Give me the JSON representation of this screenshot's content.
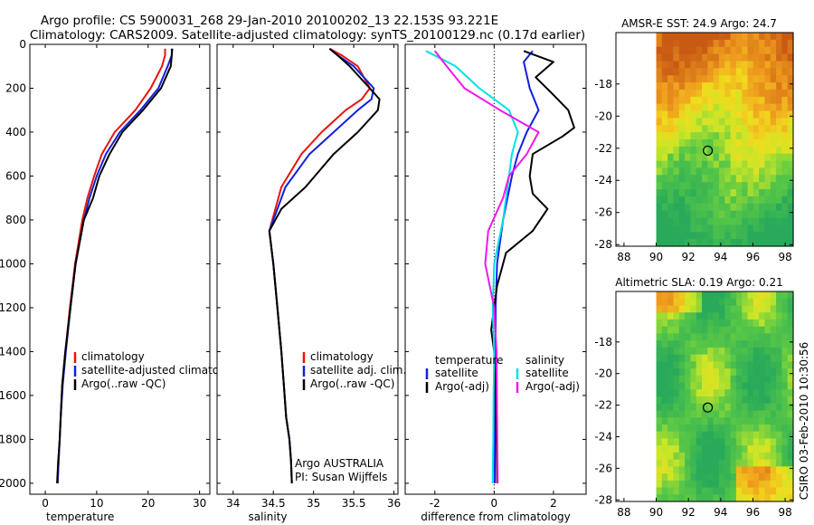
{
  "figure": {
    "title_line1": "Argo profile: CS 5900031_268 29-Jan-2010 20100202_13 22.153S 93.221E",
    "title_line2": "Climatology: CARS2009. Satellite-adjusted climatology: synTS_20100129.nc (0.17d earlier)",
    "timestamp": "CSIRO 03-Feb-2010 10:30:56"
  },
  "colors": {
    "climatology": "#e8140c",
    "satellite_adjusted": "#1020e0",
    "argo": "#000000",
    "satellite_diff_salinity": "#00e0e8",
    "argo_diff_salinity": "#ee18ee"
  },
  "chart_data": [
    {
      "type": "line",
      "xlabel": "temperature",
      "ylabel": "",
      "xlim": [
        -3,
        32
      ],
      "ylim": [
        2050,
        0
      ],
      "xticks": [
        0,
        10,
        20,
        30
      ],
      "yticks": [
        0,
        200,
        400,
        600,
        800,
        1000,
        1200,
        1400,
        1600,
        1800,
        2000
      ],
      "legend_placement": "middle-right",
      "legend": [
        "climatology",
        "satellite-adjusted climatology",
        "Argo(..raw -QC)"
      ],
      "series": [
        {
          "name": "climatology",
          "color": "#e8140c",
          "x": [
            23.3,
            23.3,
            22.7,
            20.5,
            17.5,
            13.5,
            11.0,
            9.5,
            8.2,
            7.2,
            5.8,
            4.8,
            3.9,
            3.3,
            3.0,
            2.8,
            2.6,
            2.4
          ],
          "y": [
            20,
            50,
            100,
            200,
            300,
            400,
            500,
            600,
            700,
            800,
            1000,
            1200,
            1400,
            1550,
            1700,
            1800,
            1900,
            2000
          ]
        },
        {
          "name": "satellite-adjusted climatology",
          "color": "#1020e0",
          "x": [
            24.6,
            24.6,
            23.8,
            22.0,
            18.5,
            14.5,
            11.8,
            10.0,
            8.6,
            7.5,
            5.9,
            4.9,
            4.0,
            3.4,
            3.0,
            2.8,
            2.6,
            2.4
          ],
          "y": [
            20,
            50,
            100,
            200,
            300,
            400,
            500,
            600,
            700,
            800,
            1000,
            1200,
            1400,
            1550,
            1700,
            1800,
            1900,
            2000
          ]
        },
        {
          "name": "Argo(..raw -QC)",
          "color": "#000000",
          "x": [
            24.7,
            24.6,
            24.4,
            22.5,
            19.0,
            15.0,
            12.5,
            10.5,
            9.3,
            7.5,
            5.9,
            4.9,
            3.9,
            3.3,
            3.0,
            2.8,
            2.5,
            2.3
          ],
          "y": [
            20,
            50,
            100,
            200,
            300,
            400,
            500,
            600,
            700,
            800,
            1000,
            1200,
            1400,
            1550,
            1700,
            1800,
            1900,
            2000
          ]
        }
      ]
    },
    {
      "type": "line",
      "xlabel": "salinity",
      "ylabel": "",
      "xlim": [
        33.8,
        36.05
      ],
      "ylim": [
        2050,
        0
      ],
      "xticks": [
        34,
        34.5,
        35,
        35.5,
        36
      ],
      "yticks": [
        0,
        200,
        400,
        600,
        800,
        1000,
        1200,
        1400,
        1600,
        1800,
        2000
      ],
      "legend_placement": "middle-right",
      "legend": [
        "climatology",
        "satellite adj. clim.",
        "Argo(..raw -QC)"
      ],
      "annotation": [
        "Argo AUSTRALIA",
        "PI: Susan Wijffels"
      ],
      "series": [
        {
          "name": "climatology",
          "color": "#e8140c",
          "x": [
            35.2,
            35.35,
            35.55,
            35.7,
            35.6,
            35.4,
            35.1,
            34.85,
            34.6,
            34.45,
            34.5,
            34.55,
            34.6,
            34.63,
            34.66,
            34.7,
            34.72,
            34.73
          ],
          "y": [
            20,
            50,
            100,
            200,
            250,
            300,
            400,
            500,
            650,
            850,
            1000,
            1200,
            1400,
            1550,
            1700,
            1800,
            1900,
            2000
          ]
        },
        {
          "name": "satellite adj. clim.",
          "color": "#1020e0",
          "x": [
            35.2,
            35.3,
            35.5,
            35.75,
            35.72,
            35.55,
            35.25,
            34.95,
            34.65,
            34.45,
            34.5,
            34.55,
            34.6,
            34.63,
            34.66,
            34.7,
            34.72,
            34.73
          ],
          "y": [
            20,
            50,
            100,
            200,
            250,
            300,
            400,
            500,
            650,
            850,
            1000,
            1200,
            1400,
            1550,
            1700,
            1800,
            1900,
            2000
          ]
        },
        {
          "name": "Argo(..raw -QC)",
          "color": "#000000",
          "x": [
            35.2,
            35.3,
            35.45,
            35.7,
            35.82,
            35.8,
            35.55,
            35.25,
            34.9,
            34.6,
            34.45,
            34.5,
            34.55,
            34.6,
            34.63,
            34.66,
            34.7,
            34.72,
            34.73
          ],
          "y": [
            20,
            50,
            100,
            200,
            250,
            300,
            400,
            500,
            650,
            750,
            850,
            1000,
            1200,
            1400,
            1550,
            1700,
            1800,
            1900,
            2000
          ]
        }
      ]
    },
    {
      "type": "line",
      "xlabel": "difference from climatology",
      "ylabel": "",
      "xlim": [
        -3,
        3.1
      ],
      "ylim": [
        2050,
        0
      ],
      "xticks": [
        -2,
        0,
        2
      ],
      "yticks": [
        0,
        200,
        400,
        600,
        800,
        1000,
        1200,
        1400,
        1600,
        1800,
        2000
      ],
      "reference_line_x": 0,
      "legend_placement": "middle",
      "legend_headers": [
        "temperature",
        "salinity"
      ],
      "legend": [
        "satellite",
        "Argo(-adj)",
        "satellite",
        "Argo(-adj)"
      ],
      "series": [
        {
          "name": "satellite",
          "quantity": "temperature",
          "color": "#1020e0",
          "x": [
            1.3,
            1.0,
            1.2,
            1.5,
            1.1,
            0.8,
            0.6,
            0.3,
            0.1,
            0.05,
            0.05,
            0.03,
            0.02,
            0.02
          ],
          "y": [
            30,
            80,
            200,
            300,
            400,
            500,
            600,
            800,
            1000,
            1200,
            1400,
            1600,
            1800,
            2000
          ]
        },
        {
          "name": "Argo(-adj)",
          "quantity": "temperature",
          "color": "#000000",
          "x": [
            1.0,
            2.0,
            1.4,
            2.0,
            2.5,
            2.7,
            2.3,
            1.3,
            1.2,
            1.3,
            1.8,
            1.3,
            0.4,
            0.1,
            -0.1,
            0.0,
            0.05,
            0.08,
            0.1
          ],
          "y": [
            30,
            80,
            150,
            230,
            300,
            380,
            420,
            500,
            600,
            680,
            750,
            850,
            950,
            1100,
            1300,
            1400,
            1600,
            1800,
            2000
          ]
        },
        {
          "name": "satellite",
          "quantity": "salinity",
          "color": "#00e0e8",
          "x": [
            -2.3,
            -1.3,
            -0.5,
            0.5,
            0.8,
            0.6,
            0.5,
            0.3,
            0.0,
            -0.05,
            0.0,
            -0.02,
            -0.03,
            -0.05
          ],
          "y": [
            30,
            100,
            200,
            300,
            400,
            500,
            600,
            800,
            1000,
            1200,
            1400,
            1600,
            1800,
            2000
          ]
        },
        {
          "name": "Argo(-adj)",
          "quantity": "salinity",
          "color": "#ee18ee",
          "x": [
            -2.0,
            -1.6,
            -1.0,
            0.2,
            1.5,
            1.1,
            0.5,
            0.3,
            -0.2,
            -0.3,
            0.0,
            0.08,
            0.1,
            0.12
          ],
          "y": [
            30,
            100,
            200,
            300,
            400,
            500,
            600,
            700,
            850,
            1000,
            1200,
            1400,
            1700,
            2000
          ]
        }
      ]
    },
    {
      "type": "heatmap",
      "title": "AMSR-E SST: 24.9 Argo: 24.7",
      "xlim": [
        87.5,
        98.5
      ],
      "ylim": [
        -28.1,
        -14.8
      ],
      "xticks": [
        88,
        90,
        92,
        94,
        96,
        98
      ],
      "yticks": [
        -18,
        -20,
        -22,
        -24,
        -26,
        -28
      ],
      "data_extent_x": [
        90,
        98.5
      ],
      "marker": {
        "x": 93.2,
        "y": -22.15
      },
      "colormap": "jet-like: warm orange at north, yellow band, green to south"
    },
    {
      "type": "heatmap",
      "title": "Altimetric SLA: 0.19 Argo: 0.21",
      "xlim": [
        87.5,
        98.5
      ],
      "ylim": [
        -28.1,
        -14.8
      ],
      "xticks": [
        88,
        90,
        92,
        94,
        96,
        98
      ],
      "yticks": [
        -18,
        -20,
        -22,
        -24,
        -26,
        -28
      ],
      "data_extent_x": [
        90,
        98.5
      ],
      "marker": {
        "x": 93.2,
        "y": -22.15
      },
      "colormap": "green with yellow/orange patches"
    }
  ]
}
